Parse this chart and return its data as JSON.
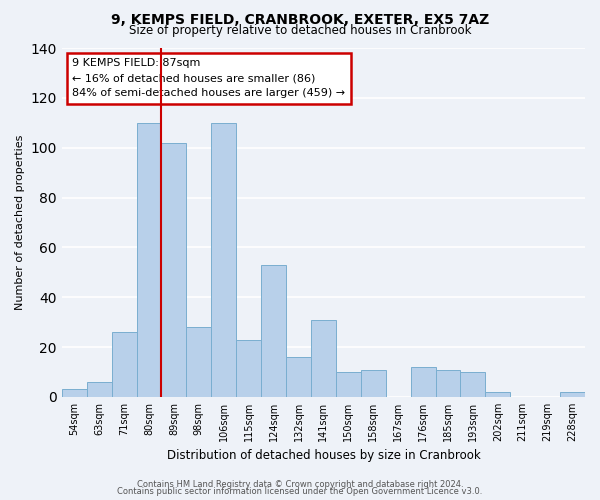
{
  "title": "9, KEMPS FIELD, CRANBROOK, EXETER, EX5 7AZ",
  "subtitle": "Size of property relative to detached houses in Cranbrook",
  "xlabel": "Distribution of detached houses by size in Cranbrook",
  "ylabel": "Number of detached properties",
  "bar_labels": [
    "54sqm",
    "63sqm",
    "71sqm",
    "80sqm",
    "89sqm",
    "98sqm",
    "106sqm",
    "115sqm",
    "124sqm",
    "132sqm",
    "141sqm",
    "150sqm",
    "158sqm",
    "167sqm",
    "176sqm",
    "185sqm",
    "193sqm",
    "202sqm",
    "211sqm",
    "219sqm",
    "228sqm"
  ],
  "bar_values": [
    3,
    6,
    26,
    110,
    102,
    28,
    110,
    23,
    53,
    16,
    31,
    10,
    11,
    0,
    12,
    11,
    10,
    2,
    0,
    0,
    2
  ],
  "bar_color": "#b8d0ea",
  "bar_edgecolor": "#7aaed0",
  "vline_color": "#cc0000",
  "ylim": [
    0,
    140
  ],
  "yticks": [
    0,
    20,
    40,
    60,
    80,
    100,
    120,
    140
  ],
  "annotation_title": "9 KEMPS FIELD: 87sqm",
  "annotation_line1": "← 16% of detached houses are smaller (86)",
  "annotation_line2": "84% of semi-detached houses are larger (459) →",
  "annotation_box_facecolor": "#ffffff",
  "annotation_box_edgecolor": "#cc0000",
  "footer1": "Contains HM Land Registry data © Crown copyright and database right 2024.",
  "footer2": "Contains public sector information licensed under the Open Government Licence v3.0.",
  "background_color": "#eef2f8",
  "grid_color": "#ffffff"
}
